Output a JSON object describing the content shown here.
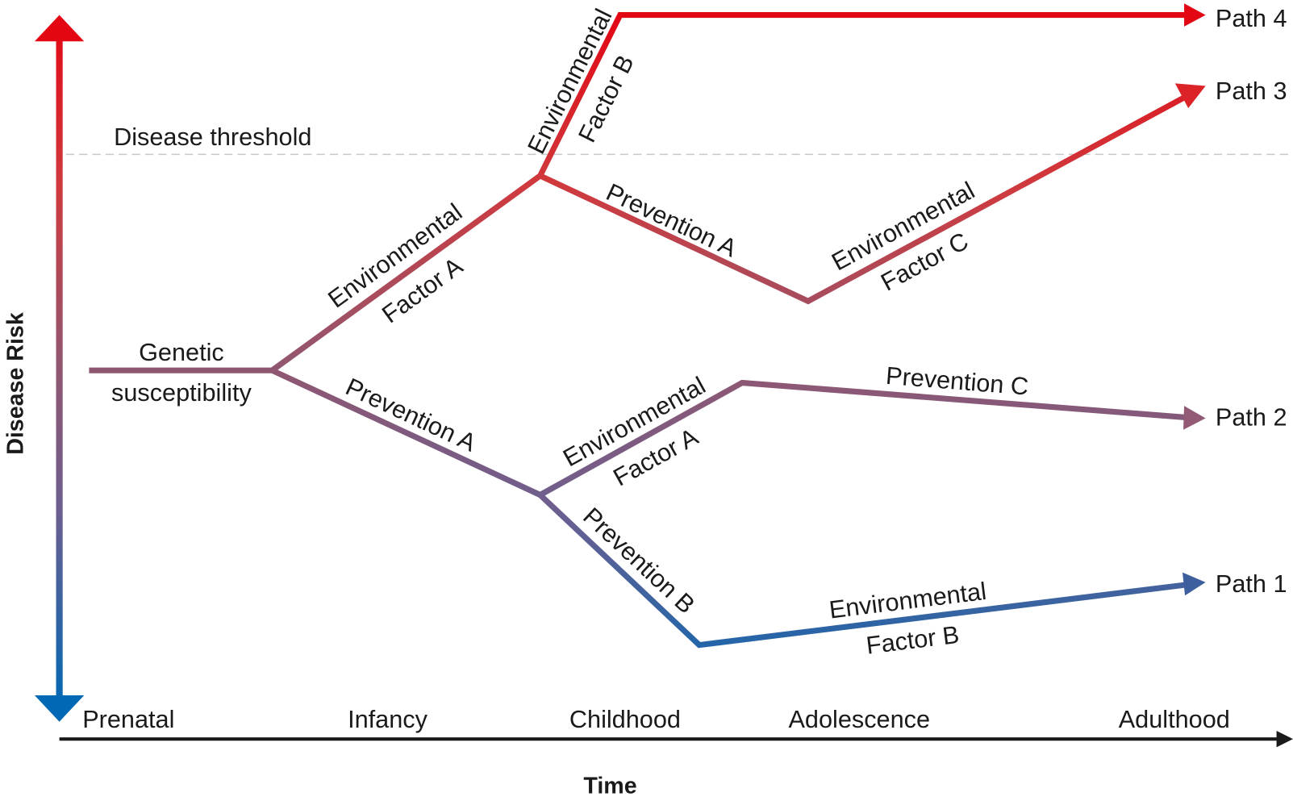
{
  "diagram": {
    "y_axis_label": "Disease Risk",
    "x_axis_label": "Time",
    "threshold_label": "Disease threshold",
    "stages": [
      "Prenatal",
      "Infancy",
      "Childhood",
      "Adolescence",
      "Adulthood"
    ],
    "start_label_line1": "Genetic",
    "start_label_line2": "susceptibility",
    "edges": {
      "env_a_upper": [
        "Environmental",
        "Factor A"
      ],
      "env_b_upper": [
        "Environmental",
        "Factor B"
      ],
      "prev_a_upper": "Prevention A",
      "env_c": [
        "Environmental",
        "Factor C"
      ],
      "prev_a_lower": "Prevention A",
      "env_a_lower": [
        "Environmental",
        "Factor A"
      ],
      "prev_c": "Prevention C",
      "prev_b": "Prevention B",
      "env_b_lower": [
        "Environmental",
        "Factor B"
      ]
    },
    "paths": [
      "Path 1",
      "Path 2",
      "Path 3",
      "Path 4"
    ],
    "colors": {
      "high_risk": "#e30613",
      "mid_risk": "#8b5a7a",
      "low_risk": "#0068b4",
      "axis": "#1a1a1a",
      "threshold": "#c8c8c8"
    }
  }
}
